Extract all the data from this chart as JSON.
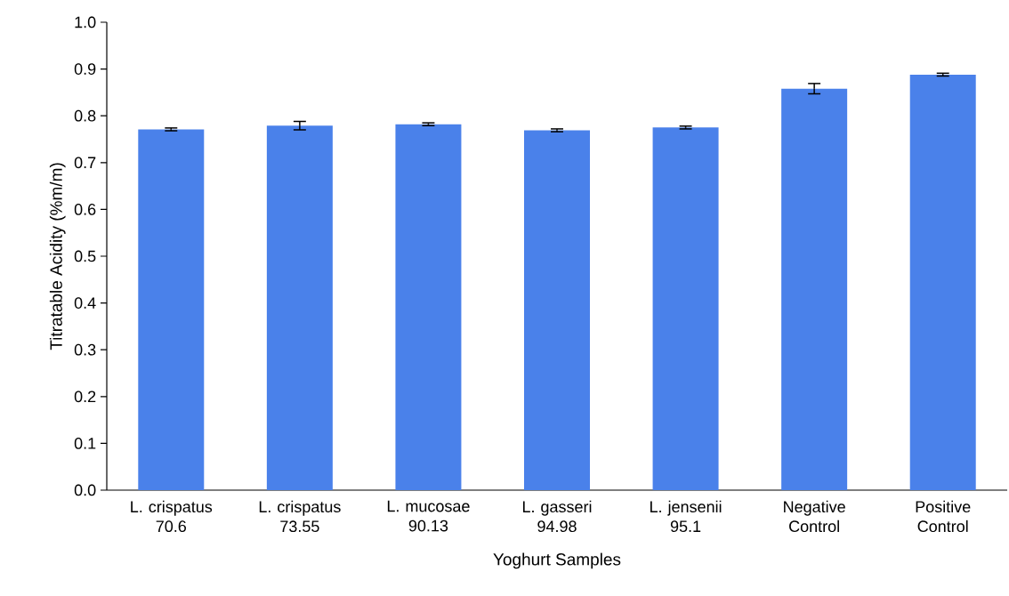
{
  "chart_data": {
    "type": "bar",
    "xlabel": "Yoghurt Samples",
    "ylabel": "Titratable Acidity (%m/m)",
    "categories": [
      "L. crispatus 70.6",
      "L. crispatus 73.55",
      "L. mucosae 90.13",
      "L. gasseri 94.98",
      "L. jensenii 95.1",
      "Negative Control",
      "Positive Control"
    ],
    "values": [
      0.771,
      0.779,
      0.782,
      0.769,
      0.775,
      0.858,
      0.888
    ],
    "errors": [
      0.003,
      0.009,
      0.003,
      0.003,
      0.003,
      0.011,
      0.003
    ],
    "color": "#4a81ea",
    "ylim": [
      0,
      1
    ],
    "yticks": [
      {
        "value": 0,
        "label": "0.0"
      },
      {
        "value": 0.1,
        "label": "0.1"
      },
      {
        "value": 0.2,
        "label": "0.2"
      },
      {
        "value": 0.3,
        "label": "0.3"
      },
      {
        "value": 0.4,
        "label": "0.4"
      },
      {
        "value": 0.5,
        "label": "0.5"
      },
      {
        "value": 0.6,
        "label": "0.6"
      },
      {
        "value": 0.7,
        "label": "0.7"
      },
      {
        "value": 0.8,
        "label": "0.8"
      },
      {
        "value": 0.9,
        "label": "0.9"
      },
      {
        "value": 1,
        "label": "1.0"
      }
    ],
    "grid": false
  }
}
